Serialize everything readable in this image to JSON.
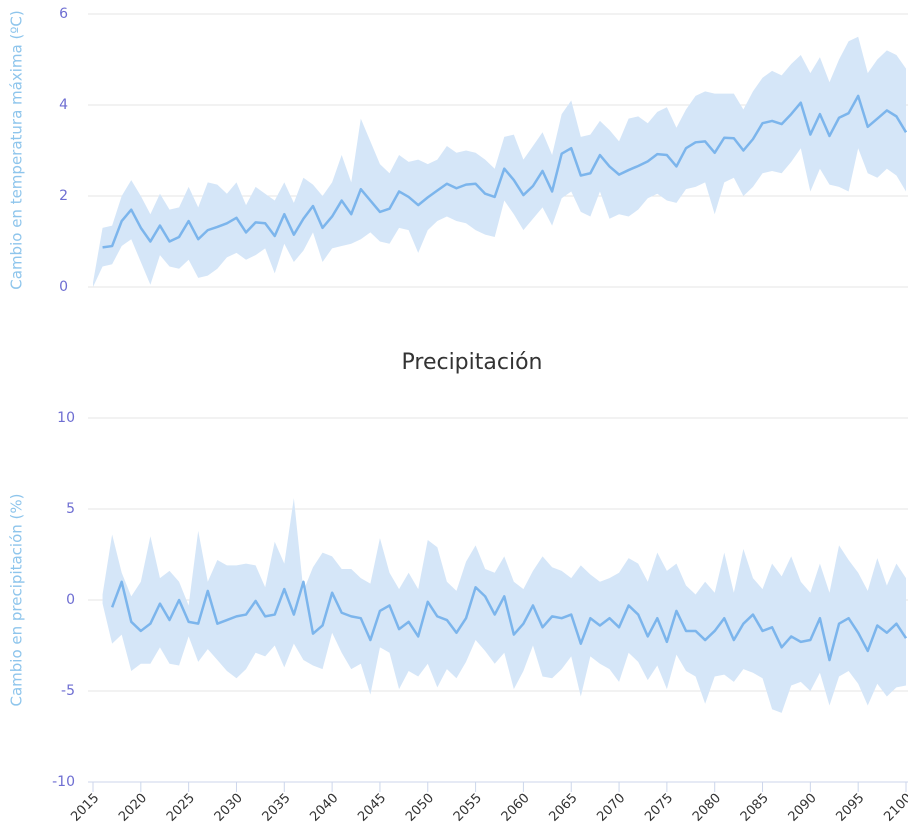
{
  "chart_data": [
    {
      "type": "line",
      "y_label": "Cambio en temperatura máxima (ºC)",
      "x": [
        2015,
        2016,
        2017,
        2018,
        2019,
        2020,
        2021,
        2022,
        2023,
        2024,
        2025,
        2026,
        2027,
        2028,
        2029,
        2030,
        2031,
        2032,
        2033,
        2034,
        2035,
        2036,
        2037,
        2038,
        2039,
        2040,
        2041,
        2042,
        2043,
        2044,
        2045,
        2046,
        2047,
        2048,
        2049,
        2050,
        2051,
        2052,
        2053,
        2054,
        2055,
        2056,
        2057,
        2058,
        2059,
        2060,
        2061,
        2062,
        2063,
        2064,
        2065,
        2066,
        2067,
        2068,
        2069,
        2070,
        2071,
        2072,
        2073,
        2074,
        2075,
        2076,
        2077,
        2078,
        2079,
        2080,
        2081,
        2082,
        2083,
        2084,
        2085,
        2086,
        2087,
        2088,
        2089,
        2090,
        2091,
        2092,
        2093,
        2094,
        2095,
        2096,
        2097,
        2098,
        2099,
        2100
      ],
      "xlim": [
        2015,
        2100
      ],
      "ylim": [
        0,
        6
      ],
      "yticks": [
        0,
        2,
        4,
        6
      ],
      "grid": true,
      "series": [
        {
          "color": "#7cb5ec",
          "values": [
            null,
            0.87,
            0.9,
            1.45,
            1.7,
            1.3,
            1.0,
            1.35,
            1.0,
            1.1,
            1.45,
            1.05,
            1.25,
            1.32,
            1.4,
            1.52,
            1.2,
            1.42,
            1.4,
            1.12,
            1.6,
            1.15,
            1.5,
            1.78,
            1.3,
            1.55,
            1.9,
            1.6,
            2.15,
            1.9,
            1.65,
            1.72,
            2.1,
            1.98,
            1.8,
            1.97,
            2.12,
            2.27,
            2.17,
            2.25,
            2.27,
            2.05,
            1.98,
            2.6,
            2.35,
            2.02,
            2.22,
            2.55,
            2.1,
            2.93,
            3.05,
            2.45,
            2.5,
            2.9,
            2.65,
            2.47,
            2.57,
            2.66,
            2.76,
            2.92,
            2.9,
            2.65,
            3.05,
            3.18,
            3.2,
            2.95,
            3.28,
            3.27,
            3.0,
            3.25,
            3.6,
            3.65,
            3.58,
            3.8,
            4.05,
            3.35,
            3.8,
            3.32,
            3.72,
            3.82,
            4.2,
            3.52,
            3.7,
            3.88,
            3.75,
            3.4
          ]
        }
      ],
      "range": {
        "color": "#d5e6f8",
        "low": [
          0.0,
          0.45,
          0.5,
          0.9,
          1.05,
          0.55,
          0.05,
          0.7,
          0.45,
          0.4,
          0.6,
          0.2,
          0.25,
          0.4,
          0.65,
          0.75,
          0.6,
          0.7,
          0.85,
          0.3,
          0.95,
          0.55,
          0.8,
          1.2,
          0.55,
          0.85,
          0.9,
          0.95,
          1.05,
          1.2,
          1.0,
          0.95,
          1.3,
          1.25,
          0.75,
          1.25,
          1.45,
          1.55,
          1.45,
          1.4,
          1.25,
          1.15,
          1.1,
          1.9,
          1.6,
          1.25,
          1.5,
          1.75,
          1.35,
          1.95,
          2.1,
          1.65,
          1.55,
          2.1,
          1.5,
          1.6,
          1.55,
          1.7,
          1.95,
          2.05,
          1.9,
          1.85,
          2.15,
          2.2,
          2.3,
          1.6,
          2.3,
          2.4,
          2.0,
          2.2,
          2.5,
          2.55,
          2.5,
          2.75,
          3.05,
          2.1,
          2.6,
          2.25,
          2.2,
          2.1,
          3.05,
          2.5,
          2.4,
          2.6,
          2.45,
          2.1
        ],
        "high": [
          0.1,
          1.3,
          1.35,
          2.0,
          2.35,
          2.0,
          1.6,
          2.05,
          1.7,
          1.75,
          2.2,
          1.75,
          2.3,
          2.25,
          2.05,
          2.3,
          1.8,
          2.2,
          2.05,
          1.9,
          2.3,
          1.85,
          2.4,
          2.25,
          2.0,
          2.3,
          2.9,
          2.3,
          3.7,
          3.2,
          2.7,
          2.5,
          2.9,
          2.75,
          2.8,
          2.7,
          2.8,
          3.1,
          2.95,
          3.0,
          2.95,
          2.8,
          2.6,
          3.3,
          3.35,
          2.8,
          3.1,
          3.4,
          2.9,
          3.8,
          4.1,
          3.3,
          3.35,
          3.65,
          3.45,
          3.2,
          3.7,
          3.75,
          3.6,
          3.85,
          3.95,
          3.5,
          3.9,
          4.2,
          4.3,
          4.25,
          4.25,
          4.25,
          3.9,
          4.3,
          4.6,
          4.75,
          4.65,
          4.9,
          5.1,
          4.7,
          5.05,
          4.5,
          5.0,
          5.4,
          5.5,
          4.7,
          5.0,
          5.2,
          5.1,
          4.8
        ]
      }
    },
    {
      "type": "line",
      "title": "Precipitación",
      "y_label": "Cambio en precipitación (%)",
      "x": [
        2015,
        2016,
        2017,
        2018,
        2019,
        2020,
        2021,
        2022,
        2023,
        2024,
        2025,
        2026,
        2027,
        2028,
        2029,
        2030,
        2031,
        2032,
        2033,
        2034,
        2035,
        2036,
        2037,
        2038,
        2039,
        2040,
        2041,
        2042,
        2043,
        2044,
        2045,
        2046,
        2047,
        2048,
        2049,
        2050,
        2051,
        2052,
        2053,
        2054,
        2055,
        2056,
        2057,
        2058,
        2059,
        2060,
        2061,
        2062,
        2063,
        2064,
        2065,
        2066,
        2067,
        2068,
        2069,
        2070,
        2071,
        2072,
        2073,
        2074,
        2075,
        2076,
        2077,
        2078,
        2079,
        2080,
        2081,
        2082,
        2083,
        2084,
        2085,
        2086,
        2087,
        2088,
        2089,
        2090,
        2091,
        2092,
        2093,
        2094,
        2095,
        2096,
        2097,
        2098,
        2099,
        2100
      ],
      "xlim": [
        2015,
        2100
      ],
      "xticks": [
        2015,
        2020,
        2025,
        2030,
        2035,
        2040,
        2045,
        2050,
        2055,
        2060,
        2065,
        2070,
        2075,
        2080,
        2085,
        2090,
        2095,
        2100
      ],
      "ylim": [
        -10,
        10
      ],
      "yticks": [
        -10,
        -5,
        0,
        5,
        10
      ],
      "grid": true,
      "series": [
        {
          "color": "#7cb5ec",
          "values": [
            null,
            null,
            -0.4,
            1.0,
            -1.2,
            -1.7,
            -1.3,
            -0.2,
            -1.1,
            0.0,
            -1.2,
            -1.3,
            0.5,
            -1.3,
            -1.1,
            -0.9,
            -0.8,
            -0.05,
            -0.9,
            -0.8,
            0.6,
            -0.8,
            1.0,
            -1.85,
            -1.4,
            0.4,
            -0.7,
            -0.9,
            -1.0,
            -2.2,
            -0.6,
            -0.3,
            -1.6,
            -1.2,
            -2.0,
            -0.1,
            -0.9,
            -1.1,
            -1.8,
            -1.0,
            0.7,
            0.2,
            -0.8,
            0.2,
            -1.9,
            -1.3,
            -0.3,
            -1.5,
            -0.9,
            -1.0,
            -0.8,
            -2.4,
            -1.0,
            -1.4,
            -1.0,
            -1.5,
            -0.3,
            -0.8,
            -2.0,
            -1.0,
            -2.3,
            -0.6,
            -1.7,
            -1.7,
            -2.2,
            -1.7,
            -1.0,
            -2.2,
            -1.3,
            -0.8,
            -1.7,
            -1.5,
            -2.6,
            -2.0,
            -2.3,
            -2.2,
            -1.0,
            -3.3,
            -1.3,
            -1.0,
            -1.8,
            -2.8,
            -1.4,
            -1.8,
            -1.3,
            -2.1
          ]
        }
      ],
      "range": {
        "color": "#d5e6f8",
        "low": [
          null,
          -0.2,
          -2.4,
          -1.9,
          -3.9,
          -3.5,
          -3.5,
          -2.6,
          -3.5,
          -3.6,
          -2.0,
          -3.4,
          -2.7,
          -3.3,
          -3.9,
          -4.3,
          -3.8,
          -2.9,
          -3.1,
          -2.5,
          -3.7,
          -2.4,
          -3.3,
          -3.6,
          -3.8,
          -1.8,
          -2.9,
          -3.8,
          -3.5,
          -5.2,
          -2.6,
          -2.9,
          -4.9,
          -3.9,
          -4.2,
          -3.5,
          -4.8,
          -3.8,
          -4.3,
          -3.4,
          -2.2,
          -2.8,
          -3.5,
          -2.9,
          -4.9,
          -3.9,
          -2.5,
          -4.2,
          -4.3,
          -3.8,
          -3.1,
          -5.3,
          -3.1,
          -3.5,
          -3.8,
          -4.5,
          -2.9,
          -3.4,
          -4.4,
          -3.6,
          -4.9,
          -3.0,
          -3.9,
          -4.2,
          -5.7,
          -4.2,
          -4.1,
          -4.5,
          -3.8,
          -4.0,
          -4.3,
          -6.0,
          -6.2,
          -4.7,
          -4.5,
          -5.0,
          -4.0,
          -5.8,
          -4.2,
          -3.9,
          -4.6,
          -5.8,
          -4.6,
          -5.3,
          -4.8,
          -4.7
        ],
        "high": [
          null,
          0.3,
          3.6,
          1.5,
          0.2,
          1.0,
          3.5,
          1.2,
          1.6,
          1.0,
          -0.3,
          3.8,
          1.0,
          2.2,
          1.9,
          1.9,
          2.0,
          1.9,
          0.7,
          3.2,
          2.0,
          5.6,
          0.5,
          1.8,
          2.6,
          2.4,
          1.7,
          1.7,
          1.2,
          0.9,
          3.4,
          1.5,
          0.6,
          1.5,
          0.6,
          3.3,
          2.9,
          1.0,
          0.5,
          2.1,
          3.0,
          1.7,
          1.5,
          2.4,
          1.0,
          0.6,
          1.6,
          2.4,
          1.8,
          1.6,
          1.2,
          1.9,
          1.4,
          1.0,
          1.2,
          1.5,
          2.3,
          2.0,
          1.0,
          2.6,
          1.6,
          2.0,
          0.8,
          0.3,
          1.0,
          0.4,
          2.6,
          0.4,
          2.8,
          1.2,
          0.6,
          2.0,
          1.3,
          2.4,
          1.0,
          0.4,
          2.0,
          0.4,
          3.0,
          2.2,
          1.5,
          0.5,
          2.3,
          0.8,
          2.0,
          1.2
        ]
      }
    }
  ]
}
